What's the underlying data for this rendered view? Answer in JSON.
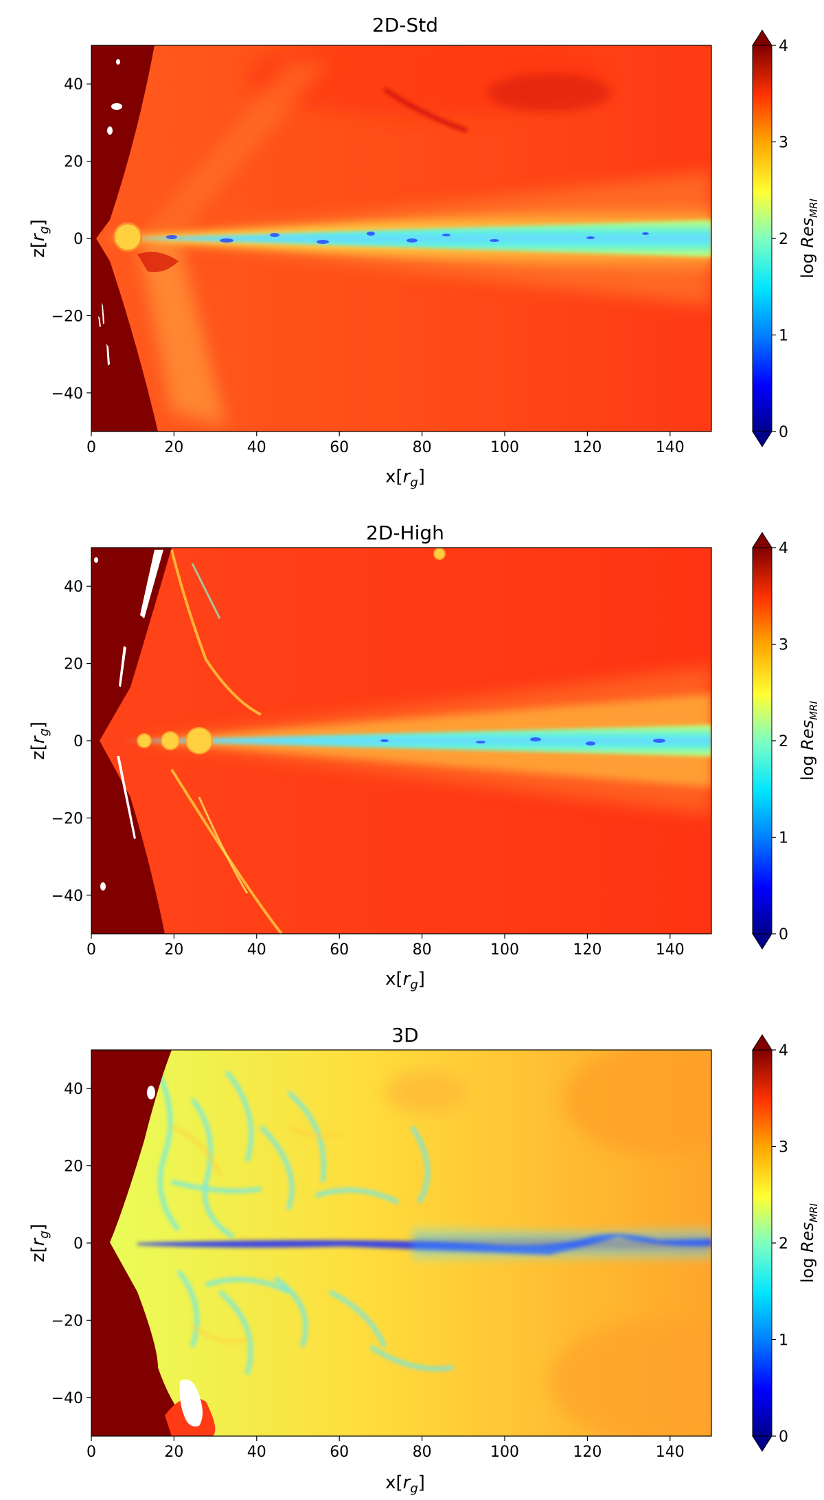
{
  "colorbar": {
    "label_prefix": "log ",
    "label_main": "Res",
    "label_sub": "MRI",
    "ticks": [
      0,
      1,
      2,
      3,
      4
    ],
    "range": [
      0,
      4
    ],
    "extend": "both",
    "colors": [
      "#00008b",
      "#0000ff",
      "#0080ff",
      "#00e5ff",
      "#7fffc0",
      "#ffff33",
      "#ffa500",
      "#ff3300",
      "#800000"
    ]
  },
  "axes": {
    "xlabel": "x",
    "xunit": "r",
    "ylabel": "z",
    "yunit": "r",
    "unit_sub": "g",
    "xlim": [
      0,
      150
    ],
    "ylim": [
      -50,
      50
    ],
    "xticks": [
      0,
      20,
      40,
      60,
      80,
      100,
      120,
      140
    ],
    "yticks": [
      -40,
      -20,
      0,
      20,
      40
    ]
  },
  "chart_data": [
    {
      "type": "heatmap",
      "title": "2D-Std",
      "xlim": [
        0,
        150
      ],
      "ylim": [
        -50,
        50
      ],
      "colorbar_range": [
        0,
        4
      ],
      "dominant_background_level": 3.6,
      "midplane_disk": {
        "z_center": 0,
        "levels_range": [
          1.0,
          2.2
        ],
        "x_extent": [
          5,
          150
        ]
      },
      "inner_saturated_region_x_max": 15
    },
    {
      "type": "heatmap",
      "title": "2D-High",
      "xlim": [
        0,
        150
      ],
      "ylim": [
        -50,
        50
      ],
      "colorbar_range": [
        0,
        4
      ],
      "dominant_background_level": 3.7,
      "midplane_disk": {
        "z_center": 0,
        "levels_range": [
          1.2,
          2.4
        ],
        "x_extent": [
          5,
          150
        ]
      },
      "inner_saturated_region_x_max": 18
    },
    {
      "type": "heatmap",
      "title": "3D",
      "xlim": [
        0,
        150
      ],
      "ylim": [
        -50,
        50
      ],
      "colorbar_range": [
        0,
        4
      ],
      "dominant_background_level": 2.7,
      "midplane_disk": {
        "z_center": 0,
        "levels_range": [
          0.4,
          1.2
        ],
        "x_extent": [
          5,
          150
        ]
      },
      "inner_saturated_region_x_max": 22
    }
  ]
}
